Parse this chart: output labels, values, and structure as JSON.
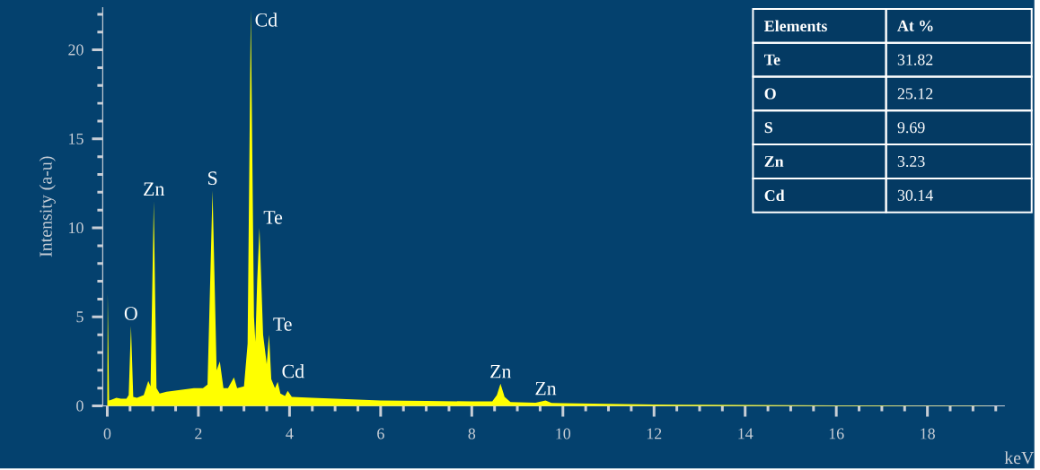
{
  "chart_data": {
    "type": "area",
    "xlabel": "keV",
    "ylabel": "Intensity (a-u)",
    "color": "#ffff00",
    "x": [
      0.0,
      0.01,
      0.04,
      0.1,
      0.2,
      0.3,
      0.42,
      0.47,
      0.52,
      0.57,
      0.65,
      0.8,
      0.9,
      0.95,
      1.02,
      1.08,
      1.15,
      1.3,
      1.6,
      1.9,
      2.1,
      2.2,
      2.31,
      2.4,
      2.47,
      2.55,
      2.65,
      2.78,
      2.85,
      3.0,
      3.08,
      3.15,
      3.22,
      3.25,
      3.29,
      3.34,
      3.42,
      3.5,
      3.55,
      3.6,
      3.68,
      3.74,
      3.8,
      3.9,
      3.96,
      4.05,
      4.5,
      5,
      6,
      7,
      8,
      8.45,
      8.55,
      8.63,
      8.72,
      8.85,
      9.4,
      9.62,
      9.75,
      10,
      11,
      12,
      13,
      14,
      15,
      16,
      17,
      18,
      19,
      19.5
    ],
    "values": [
      0,
      6.3,
      0.3,
      0.35,
      0.45,
      0.4,
      0.4,
      0.6,
      4.5,
      0.5,
      0.45,
      0.6,
      1.4,
      1.1,
      11.5,
      1.0,
      0.7,
      0.8,
      0.9,
      1.0,
      1.0,
      1.2,
      12.1,
      2.0,
      2.5,
      1.0,
      1.0,
      1.6,
      1.0,
      1.1,
      3.5,
      22.3,
      5.0,
      3.6,
      7.0,
      10.0,
      4.0,
      2.35,
      4.0,
      1.5,
      1.0,
      1.35,
      0.7,
      0.55,
      0.85,
      0.5,
      0.45,
      0.4,
      0.3,
      0.28,
      0.25,
      0.25,
      0.6,
      1.25,
      0.5,
      0.22,
      0.18,
      0.3,
      0.17,
      0.15,
      0.12,
      0.08,
      0.06,
      0.05,
      0.04,
      0.03,
      0.02,
      0.01,
      0.01,
      0
    ],
    "xlim": [
      -0.1,
      19.7
    ],
    "ylim": [
      0,
      22.4
    ],
    "xticks": [
      0,
      {
        "value": 0.5,
        "label": null
      },
      {
        "value": 1,
        "label": null
      },
      {
        "value": 1.5,
        "label": null
      },
      2,
      {
        "value": 2.5,
        "label": null
      },
      {
        "value": 3,
        "label": null
      },
      {
        "value": 3.5,
        "label": null
      },
      4,
      {
        "value": 4.5,
        "label": null
      },
      {
        "value": 5,
        "label": null
      },
      {
        "value": 5.5,
        "label": null
      },
      6,
      {
        "value": 6.5,
        "label": null
      },
      {
        "value": 7,
        "label": null
      },
      {
        "value": 7.5,
        "label": null
      },
      8,
      {
        "value": 8.5,
        "label": null
      },
      {
        "value": 9,
        "label": null
      },
      {
        "value": 9.5,
        "label": null
      },
      10,
      {
        "value": 10.5,
        "label": null
      },
      {
        "value": 11,
        "label": null
      },
      {
        "value": 11.5,
        "label": null
      },
      12,
      {
        "value": 12.5,
        "label": null
      },
      {
        "value": 13,
        "label": null
      },
      {
        "value": 13.5,
        "label": null
      },
      14,
      {
        "value": 14.5,
        "label": null
      },
      {
        "value": 15,
        "label": null
      },
      {
        "value": 15.5,
        "label": null
      },
      16,
      {
        "value": 16.5,
        "label": null
      },
      {
        "value": 17,
        "label": null
      },
      {
        "value": 17.5,
        "label": null
      },
      18,
      {
        "value": 18.5,
        "label": null
      },
      {
        "value": 19,
        "label": null
      },
      {
        "value": 19.5,
        "label": null
      }
    ],
    "yticks": [
      0,
      {
        "value": 1,
        "label": null
      },
      {
        "value": 2,
        "label": null
      },
      {
        "value": 3,
        "label": null
      },
      {
        "value": 4,
        "label": null
      },
      5,
      {
        "value": 6,
        "label": null
      },
      {
        "value": 7,
        "label": null
      },
      {
        "value": 8,
        "label": null
      },
      {
        "value": 9,
        "label": null
      },
      10,
      {
        "value": 11,
        "label": null
      },
      {
        "value": 12,
        "label": null
      },
      {
        "value": 13,
        "label": null
      },
      {
        "value": 14,
        "label": null
      },
      15,
      {
        "value": 16,
        "label": null
      },
      {
        "value": 17,
        "label": null
      },
      {
        "value": 18,
        "label": null
      },
      {
        "value": 19,
        "label": null
      },
      20,
      {
        "value": 21,
        "label": null
      },
      {
        "value": 22,
        "label": null
      }
    ],
    "annotations": [
      {
        "text": "O",
        "x": 0.52,
        "y": 4.5
      },
      {
        "text": "Zn",
        "x": 1.02,
        "y": 11.5
      },
      {
        "text": "S",
        "x": 2.31,
        "y": 12.1
      },
      {
        "text": "Cd",
        "x": 3.15,
        "y": 22.3
      },
      {
        "text": "Te",
        "x": 3.34,
        "y": 10.0
      },
      {
        "text": "Te",
        "x": 3.55,
        "y": 4.0
      },
      {
        "text": "Cd",
        "x": 3.74,
        "y": 1.35
      },
      {
        "text": "Zn",
        "x": 8.63,
        "y": 1.25
      },
      {
        "text": "Zn",
        "x": 9.62,
        "y": 0.3
      },
      "Elements",
      "At %",
      "Te",
      "31.82",
      "O",
      "25.12",
      "S",
      "9.69",
      "Zn",
      "3.23",
      "Cd",
      "30.14"
    ]
  }
}
